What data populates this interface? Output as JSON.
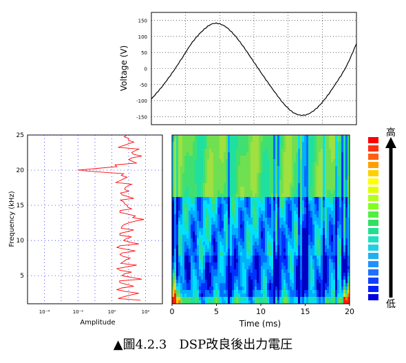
{
  "caption": {
    "marker": "▲",
    "text": "圖4.2.3　DSP改良後出力電圧"
  },
  "chart_data": [
    {
      "type": "line",
      "id": "voltage",
      "ylabel": "Voltage (V)",
      "xlim": [
        0,
        20
      ],
      "ylim": [
        -175,
        175
      ],
      "yticks": [
        -150,
        -100,
        -50,
        0,
        50,
        100,
        150
      ],
      "ytick_labels": [
        "-150",
        "-100",
        "-50",
        "0",
        "50",
        "100",
        "150"
      ],
      "grid": true,
      "series": [
        {
          "color": "#000000",
          "x": [
            0,
            1,
            2,
            3,
            4,
            5,
            6,
            7,
            8,
            9,
            10,
            11,
            12,
            13,
            14,
            15,
            16,
            17,
            18,
            19,
            20
          ],
          "y": [
            -95,
            -58,
            -15,
            33,
            82,
            118,
            140,
            135,
            108,
            67,
            20,
            -27,
            -72,
            -113,
            -140,
            -145,
            -127,
            -92,
            -46,
            6,
            77
          ]
        }
      ]
    },
    {
      "type": "line",
      "id": "spectrum",
      "xlabel": "Amplitude",
      "ylabel": "Frequency (kHz)",
      "xscale": "log",
      "xlim": [
        1e-05,
        1000.0
      ],
      "xticks": [
        0.0001,
        0.01,
        1,
        100
      ],
      "xtick_labels": [
        "10⁻⁴",
        "10⁻²",
        "10⁰",
        "10²"
      ],
      "ylim": [
        1,
        25
      ],
      "yticks": [
        5,
        10,
        15,
        20,
        25
      ],
      "ytick_labels": [
        "5",
        "10",
        "15",
        "20",
        "25"
      ],
      "grid": true,
      "series": [
        {
          "color": "#ff0000",
          "freq": [
            1.5,
            2.0,
            2.5,
            3.0,
            3.5,
            4.0,
            4.5,
            5.0,
            5.5,
            6.0,
            6.5,
            7.0,
            7.5,
            8.0,
            8.5,
            9.0,
            9.5,
            10.0,
            10.5,
            11.0,
            11.5,
            12.0,
            12.5,
            13.0,
            13.5,
            14.0,
            14.5,
            15.0,
            15.5,
            16.0,
            16.5,
            17.0,
            17.5,
            18.0,
            18.5,
            19.0,
            19.5,
            20.0,
            20.5,
            21.0,
            21.5,
            22.0,
            22.5,
            23.0,
            23.5,
            24.0,
            24.5,
            25.0
          ],
          "amplitude": [
            50,
            5,
            40,
            2,
            20,
            3,
            60,
            4,
            15,
            2,
            30,
            5,
            12,
            3,
            25,
            2,
            40,
            5,
            15,
            3,
            20,
            4,
            10,
            80,
            25,
            3,
            15,
            8,
            5,
            20,
            4,
            10,
            6,
            15,
            3,
            8,
            5,
            0.01,
            2,
            30,
            10,
            60,
            15,
            40,
            5,
            20,
            10,
            8
          ]
        }
      ]
    },
    {
      "type": "heatmap",
      "id": "spectrogram",
      "xlabel": "Time (ms)",
      "xlim": [
        0,
        20
      ],
      "xticks": [
        0,
        5,
        10,
        15,
        20
      ],
      "xtick_labels": [
        "0",
        "5",
        "10",
        "15",
        "20"
      ],
      "ylim": [
        1,
        25
      ],
      "colorscale": [
        "#0000c0",
        "#0030ff",
        "#0070ff",
        "#00b0ff",
        "#00e0ff",
        "#20e0a0",
        "#40e070",
        "#70e050",
        "#a0e040",
        "#d0e030",
        "#ffd000",
        "#ff8000",
        "#ff2000"
      ]
    },
    {
      "type": "colorbar",
      "id": "colorbar",
      "high_label": "高",
      "low_label": "低",
      "colors": [
        "#ff0000",
        "#ff3010",
        "#ff6010",
        "#ffa000",
        "#ffd000",
        "#ffff00",
        "#e0ff00",
        "#b0ff20",
        "#80ff20",
        "#50f040",
        "#30e060",
        "#20e090",
        "#20e0c0",
        "#20d0e0",
        "#20b0f0",
        "#2090ff",
        "#2070ff",
        "#1040ff",
        "#0020ff",
        "#0000e0"
      ]
    }
  ]
}
